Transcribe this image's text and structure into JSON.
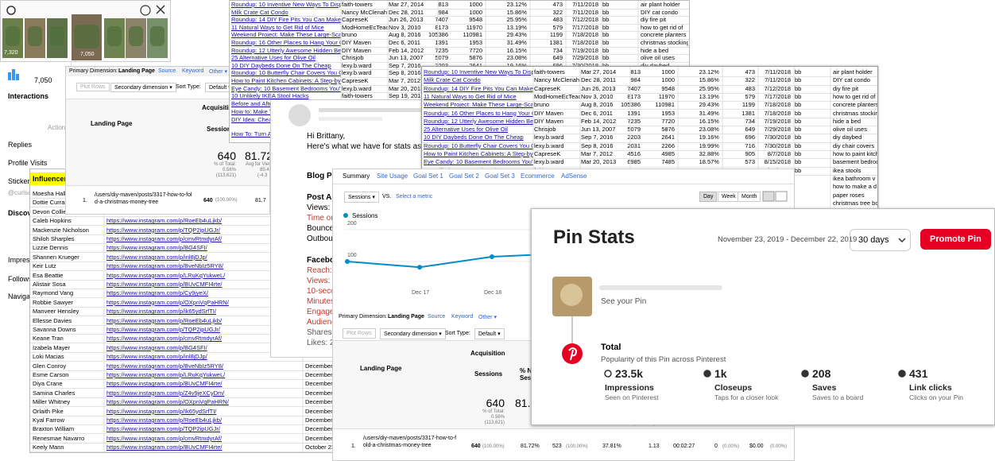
{
  "insta_strip": {
    "thumb_counts": [
      "7,320",
      null,
      null,
      "7,050",
      null,
      null,
      null
    ]
  },
  "insta_insights": {
    "texts": [
      "7,050",
      "Interactions",
      "Action",
      "Replies",
      "Profile Visits",
      "Sticker",
      "@curlsa",
      "Discov",
      "Impress",
      "Follows",
      "Navigat"
    ]
  },
  "influencer_sheet": {
    "header": "Influencer",
    "rows": [
      {
        "name": "Moesha Hall",
        "url": null,
        "date": null
      },
      {
        "name": "Dottie Curran",
        "url": null,
        "date": null
      },
      {
        "name": "Devon Collier",
        "url": null,
        "date": null
      },
      {
        "name": "Caleb Hopkins",
        "url": "https://www.instagram.com/p/RoeEb4uLjkb/",
        "date": null
      },
      {
        "name": "Mackenzie Nicholson",
        "url": "https://www.instagram.com/p/TQP2ipUGJr/",
        "date": null
      },
      {
        "name": "Shiloh Sharples",
        "url": "https://www.instagram.com/p/cmvRtmdyrAf/",
        "date": null
      },
      {
        "name": "Lizzie Dennis",
        "url": "https://www.instagram.com/p/BG4SFI/",
        "date": null
      },
      {
        "name": "Shannen Krueger",
        "url": "https://www.instagram.com/p/inl8jDJp/",
        "date": null
      },
      {
        "name": "Keir Lutz",
        "url": "https://www.instagram.com/p/BveNbIz5RY8/",
        "date": null
      },
      {
        "name": "Esa Beattie",
        "url": "https://www.instagram.com/p/LRuKqYukweL/",
        "date": null
      },
      {
        "name": "Alistair Sosa",
        "url": "https://www.instagram.com/p/BUvCMFI4rte/",
        "date": null
      },
      {
        "name": "Raymond Vang",
        "url": "https://www.instagram.com/p/Cy9jyeX/",
        "date": null
      },
      {
        "name": "Robbie Sawyer",
        "url": "https://www.instagram.com/p/OXpnVqPaHRN/",
        "date": null
      },
      {
        "name": "Manveer Hensley",
        "url": "https://www.instagram.com/p/ik65ydSrfTI/",
        "date": null
      },
      {
        "name": "Ellesse Davies",
        "url": "https://www.instagram.com/p/RoeEb4uLjkb/",
        "date": null
      },
      {
        "name": "Savanna Downs",
        "url": "https://www.instagram.com/p/TQP2ipUGJr/",
        "date": null
      },
      {
        "name": "Keane Tran",
        "url": "https://www.instagram.com/p/cmvRtmdyrAf/",
        "date": null
      },
      {
        "name": "Izabela Mayer",
        "url": "https://www.instagram.com/p/BG4SFI/",
        "date": null
      },
      {
        "name": "Loki Macias",
        "url": "https://www.instagram.com/p/inl8jDJp/",
        "date": null
      },
      {
        "name": "Glen Conroy",
        "url": "https://www.instagram.com/p/BveNbIz5RY8/",
        "date": "December"
      },
      {
        "name": "Esme Carson",
        "url": "https://www.instagram.com/p/LRuKqYukweL/",
        "date": "December"
      },
      {
        "name": "Diya Crane",
        "url": "https://www.instagram.com/p/BUvCMFI4rte/",
        "date": "December"
      },
      {
        "name": "Samina Charles",
        "url": "https://www.instagram.com/p/Z4v9jeXCyDm/",
        "date": "December"
      },
      {
        "name": "Miller Whitney",
        "url": "https://www.instagram.com/p/OXpnVqPaHRN/",
        "date": "December"
      },
      {
        "name": "Orlaith Pike",
        "url": "https://www.instagram.com/p/Ik65ydSrfTI/",
        "date": "December"
      },
      {
        "name": "Kyal Farrow",
        "url": "https://www.instagram.com/p/RoeEb4uLjkb/",
        "date": "December"
      },
      {
        "name": "Braxton William",
        "url": "https://www.instagram.com/p/TQP2ipUGJr/",
        "date": "December"
      },
      {
        "name": "Renesmae Navarro",
        "url": "https://www.instagram.com/p/cmvRtmdyrAf/",
        "date": "December"
      },
      {
        "name": "Keely Mann",
        "url": "https://www.instagram.com/p/BUvCMFI4rte/",
        "date": "October 23"
      }
    ]
  },
  "ga_dim_table": {
    "texts": [
      "Primary Dimension:",
      "Landing Page",
      "Source",
      "Keyword",
      "Other ▾",
      "Plot Rows",
      "Secondary dimension ▾",
      "Sort Type:",
      "Default ▾",
      "Acquisition",
      "Landing Page",
      "Sessions",
      "640",
      "% of Total:",
      "0.56%",
      "(113,621)",
      "81.72",
      "Avg for View",
      "85.4",
      "(-4.3",
      "1.",
      "/users/diy-maven/posts/3317-how-to-fold-a-christmas-money-tree",
      "640",
      "(100.00%)",
      "81.7"
    ]
  },
  "posts_sheet": {
    "rows": [
      [
        "Roundup: 10 Inventive New Ways To Display Air P",
        "faith-towers",
        "Mar 27, 2014",
        813,
        1000,
        "23.12%",
        473,
        "7/11/2018",
        "bb",
        "air plant holder"
      ],
      [
        "Milk Crate Cat Condo",
        "Nancy McClenaha",
        "Dec 28, 2011",
        984,
        1000,
        "15.86%",
        322,
        "7/11/2018",
        "bb",
        "DIY cat condo"
      ],
      [
        "Roundup: 14 DIY Fire Pits You Can Make Yourself",
        "CapreseK",
        "Jun 26, 2013",
        7407,
        9548,
        "25.95%",
        483,
        "7/12/2018",
        "bb",
        "diy fire pit"
      ],
      [
        "11 Natural Ways to Get Rid of Mice",
        "ModHomeEcTeac",
        "Nov 3, 2010",
        8173,
        11970,
        "13.19%",
        579,
        "7/17/2018",
        "bb",
        "how to get rid of"
      ],
      [
        "Weekend Project: Make These Large-Scale Moder",
        "bruno",
        "Aug 8, 2016",
        105386,
        110981,
        "29.43%",
        1199,
        "7/18/2018",
        "bb",
        "concrete planters"
      ],
      [
        "Roundup: 16 Other Places to Hang Your Christmas",
        "DIY Maven",
        "Dec 6, 2011",
        1391,
        1953,
        "31.49%",
        1381,
        "7/18/2018",
        "bb",
        "christmas stocking"
      ],
      [
        "Roundup: 12 Utterly Awesome Hidden Beds",
        "DIY Maven",
        "Feb 14, 2012",
        7235,
        7720,
        "16.15%",
        734,
        "7/19/2018",
        "bb",
        "hide a bed"
      ],
      [
        "25 Alternative Uses for Olive Oil",
        "Chrisjob",
        "Jun 13, 2007",
        5079,
        5876,
        "23.08%",
        649,
        "7/29/2018",
        "bb",
        "olive oil uses"
      ],
      [
        "10 DIY Daybeds Done On The Cheap",
        "lexy.b.ward",
        "Sep 7, 2016",
        2203,
        2641,
        "19.16%",
        696,
        "7/30/2018",
        "bb",
        "diy daybed"
      ],
      [
        "Roundup: 10 Butterfly Chair Covers You Can DIY",
        "lexy.b.ward",
        "Sep 8, 2016",
        2031,
        2266,
        "19.99%",
        716,
        "7/30/2018",
        "bb",
        "diy chair covers"
      ],
      [
        "How to Paint Kitchen Cabinets: A Step-by-Step Gu",
        "CapreseK",
        "Mar 7, 2012",
        4516,
        4985,
        "32.88%",
        905,
        "8/7/2018",
        "bb",
        "how to paint kitch"
      ],
      [
        "Eye Candy: 10 Basement Bedrooms You'd Actually",
        "lexy.b.ward",
        "Mar 20, 2013",
        6985,
        7485,
        "18.57%",
        573,
        "8/15/2018",
        "bb",
        "basement bedroo"
      ],
      [
        "10 Unlikely IKEA Stool Hacks",
        "faith-towers",
        "Sep 19, 2016",
        1797,
        2500,
        "22.59%",
        793,
        "8/15/2018",
        "bb",
        "ikea stools"
      ]
    ],
    "extra_titles": [
      "Before and After:",
      "How to: Make Ya",
      "DIY Idea: Cheap",
      "How To: Turn A St"
    ],
    "extra_tags": [
      "ikea bathroom v",
      "how to make a d",
      "paper roses",
      "christmas tree bo"
    ]
  },
  "email": {
    "lines": [
      "Hi Brittany,",
      "Here's what we have for stats as of la",
      "Blog Po",
      "Post An",
      "Views: 1",
      "Time on",
      "Bounce",
      "Outboun",
      "Faceboo",
      "Reach: 7",
      "Views: 1",
      "10-secon",
      "Minutes",
      "Engager",
      "Audience",
      "Shares:",
      "Likes: 27"
    ]
  },
  "ga_summary": {
    "texts": [
      "Summary",
      "Site Usage",
      "Goal Set 1",
      "Goal Set 2",
      "Goal Set 3",
      "Ecommerce",
      "AdSense",
      "Sessions ▾",
      "VS.",
      "Select a metric",
      "Day",
      "Week",
      "Month",
      "Sessions",
      "Primary Dimension:",
      "Landing Page",
      "Source",
      "Keyword",
      "Other ▾",
      "Plot Rows",
      "Secondary dimension ▾",
      "Sort Type:",
      "Default ▾",
      "Acquisition",
      "Landing Page",
      "Sessions",
      "% Ne",
      "Sessi",
      "640",
      "% of Total:",
      "0.56%",
      "(113,621)",
      "81.7",
      "(-16.03%)",
      "1.",
      "/users/diy-maven/posts/3317-how-to-fold-a-christmas-money-tree",
      "640",
      "(100.00%)",
      "81.72%",
      "523",
      "(100.00%)",
      "37.81%",
      "1.13",
      "00:02:27",
      "0",
      "(0.00%)",
      "$0.00",
      "(0.00%)"
    ],
    "chart": {
      "x_labels": [
        null,
        "Dec 17",
        "Dec 18",
        null
      ],
      "values": [
        100,
        82,
        115,
        125
      ],
      "ylim": [
        0,
        225
      ],
      "yticks": [
        100,
        200
      ],
      "color": "#058dc7"
    }
  },
  "pin_stats": {
    "title": "Pin Stats",
    "date_range": "November 23, 2019 - December 22, 2019",
    "period": "30 days",
    "promote": "Promote Pin",
    "see_pin": "See your Pin",
    "total": "Total",
    "total_sub": "Popularity of this Pin across Pinterest",
    "stats": [
      {
        "value": "23.5k",
        "label": "Impressions",
        "sub": "Seen on Pinterest"
      },
      {
        "value": "1k",
        "label": "Closeups",
        "sub": "Taps for a closer look"
      },
      {
        "value": "208",
        "label": "Saves",
        "sub": "Saves to a board"
      },
      {
        "value": "431",
        "label": "Link clicks",
        "sub": "Clicks on your Pin"
      }
    ]
  }
}
